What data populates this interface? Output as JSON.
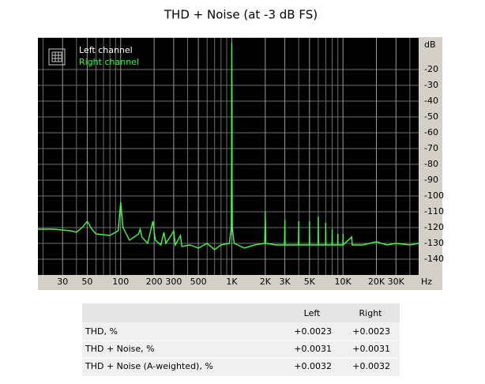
{
  "chart_data": {
    "type": "line",
    "title": "THD + Noise (at -3 dB FS)",
    "x_label": "Hz",
    "y_label": "dB",
    "log_x": true,
    "grid": true,
    "legend": "top-left",
    "xlim": [
      18,
      48000
    ],
    "ylim": [
      -150,
      0
    ],
    "xticks": [
      30,
      50,
      100,
      200,
      300,
      500,
      {
        "value": 1000,
        "label": "1K"
      },
      {
        "value": 2000,
        "label": "2K"
      },
      {
        "value": 3000,
        "label": "3K"
      },
      {
        "value": 5000,
        "label": "5K"
      },
      {
        "value": 10000,
        "label": "10K"
      },
      {
        "value": 20000,
        "label": "20K"
      },
      {
        "value": 30000,
        "label": "30K"
      }
    ],
    "xminor": [
      20,
      40,
      60,
      70,
      80,
      90,
      400,
      600,
      700,
      800,
      900,
      4000,
      6000,
      7000,
      8000,
      9000,
      40000
    ],
    "yticks": [
      -20,
      -30,
      -40,
      -50,
      -60,
      -70,
      -80,
      -90,
      -100,
      -110,
      -120,
      -130,
      -140
    ],
    "x": [
      18,
      25,
      35,
      40,
      45,
      50,
      55,
      60,
      80,
      95,
      100,
      105,
      120,
      145,
      150,
      155,
      175,
      195,
      205,
      230,
      245,
      255,
      290,
      300,
      310,
      345,
      355,
      420,
      500,
      600,
      700,
      800,
      950,
      990,
      1000,
      1010,
      1050,
      1300,
      1600,
      1980,
      2000,
      2020,
      2500,
      2980,
      3000,
      3020,
      3980,
      4000,
      4020,
      4980,
      5000,
      5020,
      5980,
      6000,
      6020,
      6980,
      7000,
      7020,
      7980,
      8000,
      8020,
      8980,
      9000,
      9020,
      9980,
      10000,
      10020,
      12000,
      12100,
      15000,
      20000,
      25000,
      30000,
      40000,
      48000
    ],
    "series": [
      {
        "name": "Left channel",
        "color": "#ffffff",
        "values": [
          -121,
          -121,
          -122,
          -123,
          -120,
          -116,
          -121,
          -124,
          -125,
          -122,
          -104,
          -120,
          -128,
          -124,
          -121,
          -126,
          -130,
          -116,
          -128,
          -131,
          -123,
          -130,
          -124,
          -122,
          -131,
          -125,
          -132,
          -131,
          -133,
          -130,
          -134,
          -131,
          -130,
          -120,
          -3,
          -120,
          -130,
          -133,
          -131,
          -130,
          -110,
          -130,
          -131,
          -131,
          -115,
          -131,
          -131,
          -116,
          -131,
          -131,
          -116,
          -131,
          -131,
          -113,
          -131,
          -131,
          -117,
          -131,
          -131,
          -121,
          -131,
          -131,
          -124,
          -131,
          -131,
          -124,
          -131,
          -126,
          -131,
          -131,
          -129,
          -131,
          -130,
          -131,
          -130
        ]
      },
      {
        "name": "Right channel",
        "color": "#33ff33",
        "values": [
          -121,
          -121,
          -122,
          -123,
          -120,
          -116,
          -121,
          -124,
          -125,
          -122,
          -104,
          -120,
          -128,
          -124,
          -121,
          -126,
          -130,
          -116,
          -128,
          -131,
          -123,
          -130,
          -124,
          -122,
          -131,
          -125,
          -132,
          -131,
          -133,
          -130,
          -134,
          -131,
          -130,
          -120,
          -3,
          -120,
          -130,
          -133,
          -131,
          -130,
          -110,
          -130,
          -131,
          -131,
          -115,
          -131,
          -131,
          -116,
          -131,
          -131,
          -116,
          -131,
          -131,
          -113,
          -131,
          -131,
          -117,
          -131,
          -131,
          -121,
          -131,
          -131,
          -124,
          -131,
          -131,
          -124,
          -131,
          -126,
          -131,
          -131,
          -129,
          -131,
          -130,
          -131,
          -130
        ]
      }
    ]
  },
  "table": {
    "columns": [
      "Left",
      "Right"
    ],
    "rows": [
      [
        "THD, %",
        "+0.0023",
        "+0.0023"
      ],
      [
        "THD + Noise, %",
        "+0.0031",
        "+0.0031"
      ],
      [
        "THD + Noise (A-weighted), %",
        "+0.0032",
        "+0.0032"
      ]
    ]
  }
}
